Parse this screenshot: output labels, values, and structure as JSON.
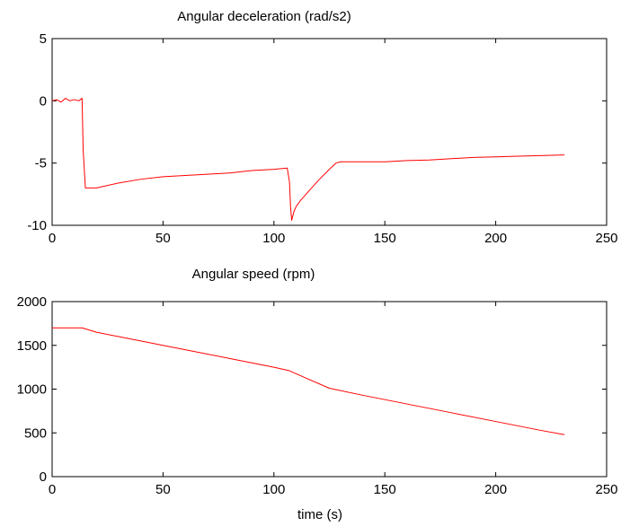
{
  "chart_data": [
    {
      "type": "line",
      "title": "Angular deceleration (rad/s2)",
      "xlabel": "",
      "ylabel": "",
      "xlim": [
        0,
        250
      ],
      "ylim": [
        -10,
        5
      ],
      "x_ticks": [
        0,
        50,
        100,
        150,
        200,
        250
      ],
      "y_ticks": [
        5,
        0,
        -5,
        -10
      ],
      "grid": false,
      "color": "#ff0000",
      "series": [
        {
          "x": [
            0,
            2,
            4,
            6,
            8,
            10,
            12,
            13.5,
            14,
            15,
            20,
            30,
            40,
            50,
            60,
            70,
            80,
            90,
            100,
            106,
            107,
            107.5,
            108,
            109,
            110,
            112,
            115,
            120,
            125,
            128,
            130,
            140,
            150,
            160,
            170,
            180,
            190,
            200,
            210,
            220,
            231
          ],
          "y": [
            0,
            0.1,
            -0.1,
            0.2,
            0,
            0.1,
            0,
            0.2,
            -4.0,
            -7.0,
            -7.0,
            -6.6,
            -6.3,
            -6.1,
            -6.0,
            -5.9,
            -5.8,
            -5.6,
            -5.5,
            -5.4,
            -6.5,
            -8.5,
            -9.6,
            -8.9,
            -8.5,
            -8.0,
            -7.4,
            -6.4,
            -5.5,
            -5.0,
            -4.9,
            -4.9,
            -4.9,
            -4.8,
            -4.75,
            -4.65,
            -4.55,
            -4.5,
            -4.45,
            -4.4,
            -4.35
          ]
        }
      ]
    },
    {
      "type": "line",
      "title": "Angular speed (rpm)",
      "xlabel": "time (s)",
      "ylabel": "",
      "xlim": [
        0,
        250
      ],
      "ylim": [
        0,
        2000
      ],
      "x_ticks": [
        0,
        50,
        100,
        150,
        200,
        250
      ],
      "y_ticks": [
        2000,
        1500,
        1000,
        500,
        0
      ],
      "grid": false,
      "color": "#ff0000",
      "series": [
        {
          "x": [
            0,
            13.5,
            20,
            40,
            60,
            80,
            100,
            107,
            115,
            125,
            140,
            160,
            180,
            200,
            220,
            231
          ],
          "y": [
            1700,
            1700,
            1650,
            1550,
            1450,
            1350,
            1250,
            1210,
            1120,
            1010,
            930,
            830,
            730,
            630,
            530,
            480
          ]
        }
      ]
    }
  ]
}
